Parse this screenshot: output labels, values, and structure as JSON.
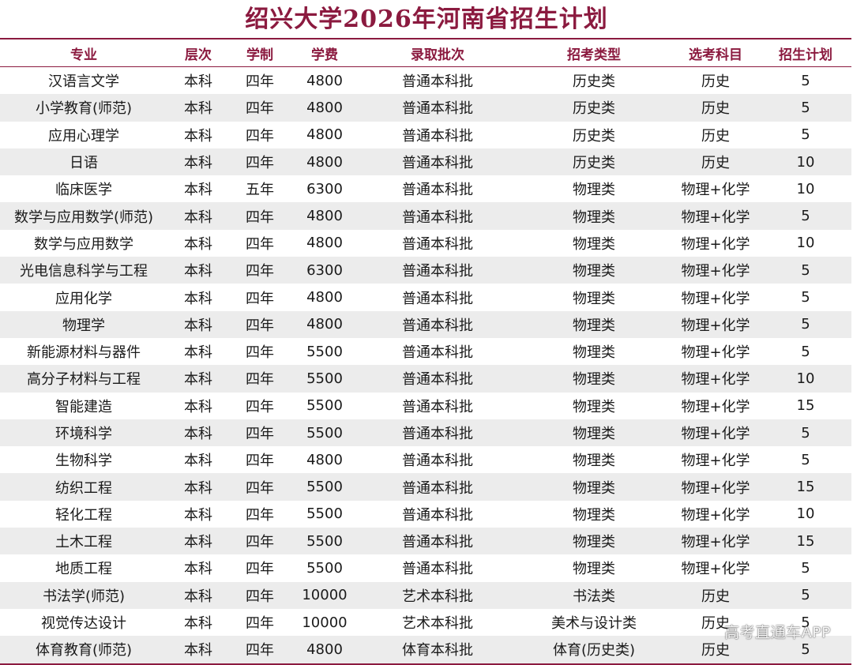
{
  "title": "绍兴大学2026年河南省招生计划",
  "columns": [
    "专业",
    "层次",
    "学制",
    "学费",
    "录取批次",
    "招考类型",
    "选考科目",
    "招生计划"
  ],
  "rows": [
    [
      "汉语言文学",
      "本科",
      "四年",
      "4800",
      "普通本科批",
      "历史类",
      "历史",
      "5"
    ],
    [
      "小学教育(师范)",
      "本科",
      "四年",
      "4800",
      "普通本科批",
      "历史类",
      "历史",
      "5"
    ],
    [
      "应用心理学",
      "本科",
      "四年",
      "4800",
      "普通本科批",
      "历史类",
      "历史",
      "5"
    ],
    [
      "日语",
      "本科",
      "四年",
      "4800",
      "普通本科批",
      "历史类",
      "历史",
      "10"
    ],
    [
      "临床医学",
      "本科",
      "五年",
      "6300",
      "普通本科批",
      "物理类",
      "物理+化学",
      "10"
    ],
    [
      "数学与应用数学(师范)",
      "本科",
      "四年",
      "4800",
      "普通本科批",
      "物理类",
      "物理+化学",
      "5"
    ],
    [
      "数学与应用数学",
      "本科",
      "四年",
      "4800",
      "普通本科批",
      "物理类",
      "物理+化学",
      "10"
    ],
    [
      "光电信息科学与工程",
      "本科",
      "四年",
      "6300",
      "普通本科批",
      "物理类",
      "物理+化学",
      "5"
    ],
    [
      "应用化学",
      "本科",
      "四年",
      "4800",
      "普通本科批",
      "物理类",
      "物理+化学",
      "5"
    ],
    [
      "物理学",
      "本科",
      "四年",
      "4800",
      "普通本科批",
      "物理类",
      "物理+化学",
      "5"
    ],
    [
      "新能源材料与器件",
      "本科",
      "四年",
      "5500",
      "普通本科批",
      "物理类",
      "物理+化学",
      "5"
    ],
    [
      "高分子材料与工程",
      "本科",
      "四年",
      "5500",
      "普通本科批",
      "物理类",
      "物理+化学",
      "10"
    ],
    [
      "智能建造",
      "本科",
      "四年",
      "5500",
      "普通本科批",
      "物理类",
      "物理+化学",
      "15"
    ],
    [
      "环境科学",
      "本科",
      "四年",
      "5500",
      "普通本科批",
      "物理类",
      "物理+化学",
      "5"
    ],
    [
      "生物科学",
      "本科",
      "四年",
      "4800",
      "普通本科批",
      "物理类",
      "物理+化学",
      "5"
    ],
    [
      "纺织工程",
      "本科",
      "四年",
      "5500",
      "普通本科批",
      "物理类",
      "物理+化学",
      "15"
    ],
    [
      "轻化工程",
      "本科",
      "四年",
      "5500",
      "普通本科批",
      "物理类",
      "物理+化学",
      "10"
    ],
    [
      "土木工程",
      "本科",
      "四年",
      "5500",
      "普通本科批",
      "物理类",
      "物理+化学",
      "15"
    ],
    [
      "地质工程",
      "本科",
      "四年",
      "5500",
      "普通本科批",
      "物理类",
      "物理+化学",
      "5"
    ],
    [
      "书法学(师范)",
      "本科",
      "四年",
      "10000",
      "艺术本科批",
      "书法类",
      "历史",
      "5"
    ],
    [
      "视觉传达设计",
      "本科",
      "四年",
      "10000",
      "艺术本科批",
      "美术与设计类",
      "历史",
      "5"
    ],
    [
      "体育教育(师范)",
      "本科",
      "四年",
      "4800",
      "体育本科批",
      "体育(历史类)",
      "历史",
      "5"
    ]
  ],
  "watermark": "高考直通车APP",
  "colors": {
    "accent": "#8b1a3f",
    "stripe": "#ececec"
  }
}
